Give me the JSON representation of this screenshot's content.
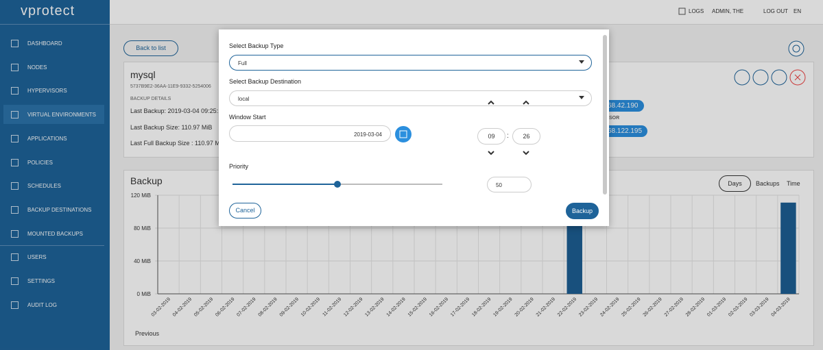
{
  "topbar": {
    "logo": "vprotect",
    "logs": "LOGS",
    "user": "ADMIN, THE",
    "logout": "LOG OUT",
    "lang": "EN"
  },
  "sidebar": {
    "items": [
      "DASHBOARD",
      "NODES",
      "HYPERVISORS",
      "VIRTUAL ENVIRONMENTS",
      "APPLICATIONS",
      "POLICIES",
      "SCHEDULES",
      "BACKUP DESTINATIONS",
      "MOUNTED BACKUPS",
      "USERS",
      "SETTINGS",
      "AUDIT LOG"
    ]
  },
  "back_button": "Back to list",
  "details": {
    "name": "mysql",
    "id": "5737B9E2-36AA-11E9-9332-5254006",
    "section": "BACKUP DETAILS",
    "last_backup": "Last Backup: 2019-03-04 09:25:1",
    "last_backup_size": "Last Backup Size: 110.97 MiB",
    "last_full_backup_size": "Last Full Backup Size : 110.97 Mi",
    "chips": [
      "68.42.190",
      "68.122.195"
    ],
    "chip_label": "SOR"
  },
  "chart_card": {
    "toggles": [
      "Days",
      "Backups",
      "Time"
    ],
    "previous": "Previous"
  },
  "chart_data": {
    "type": "bar",
    "title": "Backup",
    "categories": [
      "03-02-2019",
      "04-02-2019",
      "05-02-2019",
      "06-02-2019",
      "07-02-2019",
      "08-02-2019",
      "09-02-2019",
      "10-02-2019",
      "11-02-2019",
      "12-02-2019",
      "13-02-2019",
      "14-02-2019",
      "15-02-2019",
      "16-02-2019",
      "17-02-2019",
      "18-02-2019",
      "19-02-2019",
      "20-02-2019",
      "21-02-2019",
      "22-02-2019",
      "23-02-2019",
      "24-02-2019",
      "25-02-2019",
      "26-02-2019",
      "27-02-2019",
      "28-02-2019",
      "01-03-2019",
      "02-03-2019",
      "03-03-2019",
      "04-03-2019"
    ],
    "values": [
      0,
      0,
      0,
      0,
      0,
      0,
      0,
      0,
      0,
      0,
      0,
      0,
      0,
      0,
      0,
      0,
      0,
      0,
      0,
      111,
      0,
      0,
      0,
      0,
      0,
      0,
      0,
      0,
      0,
      111
    ],
    "color": "#1d5f93",
    "ylim": [
      0,
      120
    ],
    "yticks": [
      {
        "value": 0,
        "label": "0 MiB"
      },
      {
        "value": 40,
        "label": "40 MiB"
      },
      {
        "value": 80,
        "label": "80 MiB"
      },
      {
        "value": 120,
        "label": "120 MiB"
      }
    ],
    "grid": true
  },
  "modal": {
    "backup_type_label": "Select Backup Type",
    "backup_type": "Full",
    "destination_label": "Select Backup Destination",
    "destination": "local",
    "window_start_label": "Window Start",
    "date": "2019-03-04",
    "hour": "09",
    "separator": ":",
    "minute": "26",
    "priority_label": "Priority",
    "priority": "50",
    "cancel": "Cancel",
    "submit": "Backup"
  }
}
